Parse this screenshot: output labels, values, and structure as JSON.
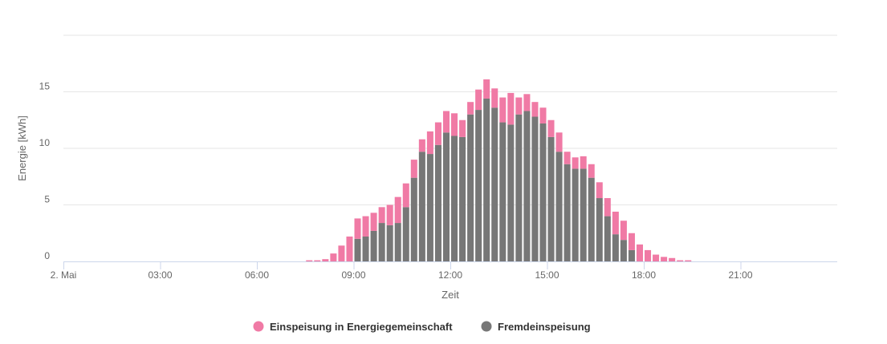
{
  "chart_data": {
    "type": "bar",
    "stacked": true,
    "xlabel": "Zeit",
    "ylabel": "Energie [kWh]",
    "ylim": [
      0,
      20
    ],
    "yticks": [
      0,
      5,
      10,
      15
    ],
    "xlim": [
      0,
      24
    ],
    "xtick_values": [
      0,
      3,
      6,
      9,
      12,
      15,
      18,
      21
    ],
    "xtick_labels": [
      "2. Mai",
      "03:00",
      "06:00",
      "09:00",
      "12:00",
      "15:00",
      "18:00",
      "21:00"
    ],
    "x": [
      "07:30",
      "07:45",
      "08:00",
      "08:15",
      "08:30",
      "08:45",
      "09:00",
      "09:15",
      "09:30",
      "09:45",
      "10:00",
      "10:15",
      "10:30",
      "10:45",
      "11:00",
      "11:15",
      "11:30",
      "11:45",
      "12:00",
      "12:15",
      "12:30",
      "12:45",
      "13:00",
      "13:15",
      "13:30",
      "13:45",
      "14:00",
      "14:15",
      "14:30",
      "14:45",
      "15:00",
      "15:15",
      "15:30",
      "15:45",
      "16:00",
      "16:15",
      "16:30",
      "16:45",
      "17:00",
      "17:15",
      "17:30",
      "17:45",
      "18:00",
      "18:15",
      "18:30",
      "18:45",
      "19:00",
      "19:15",
      "19:30"
    ],
    "grid": true,
    "legend_position": "bottom-center",
    "series": [
      {
        "name": "Fremdeinspeisung",
        "color": "#777777",
        "values": [
          0,
          0,
          0,
          0,
          0,
          0,
          2.0,
          2.2,
          2.7,
          3.4,
          3.2,
          3.4,
          4.8,
          7.4,
          9.7,
          9.5,
          10.3,
          11.4,
          11.1,
          11.0,
          13.0,
          13.4,
          14.4,
          13.6,
          12.3,
          12.1,
          13.0,
          13.3,
          12.8,
          12.2,
          11.0,
          9.7,
          8.6,
          8.2,
          8.2,
          7.4,
          5.6,
          4.0,
          2.4,
          1.9,
          1.0,
          0,
          0,
          0,
          0,
          0,
          0,
          0,
          0
        ]
      },
      {
        "name": "Einspeisung in Energiegemeinschaft",
        "color": "#f07aa5",
        "values": [
          0.1,
          0.1,
          0.2,
          0.7,
          1.4,
          2.2,
          1.8,
          1.8,
          1.6,
          1.4,
          1.8,
          2.3,
          2.1,
          1.6,
          1.1,
          2.0,
          2.0,
          1.9,
          2.0,
          1.5,
          1.1,
          1.8,
          1.7,
          1.7,
          2.2,
          2.8,
          1.5,
          1.5,
          1.3,
          1.4,
          1.5,
          1.7,
          1.1,
          1.0,
          1.1,
          1.2,
          1.4,
          1.6,
          2.0,
          1.7,
          1.5,
          1.5,
          1.0,
          0.6,
          0.4,
          0.3,
          0.1,
          0.1,
          0
        ]
      }
    ]
  }
}
